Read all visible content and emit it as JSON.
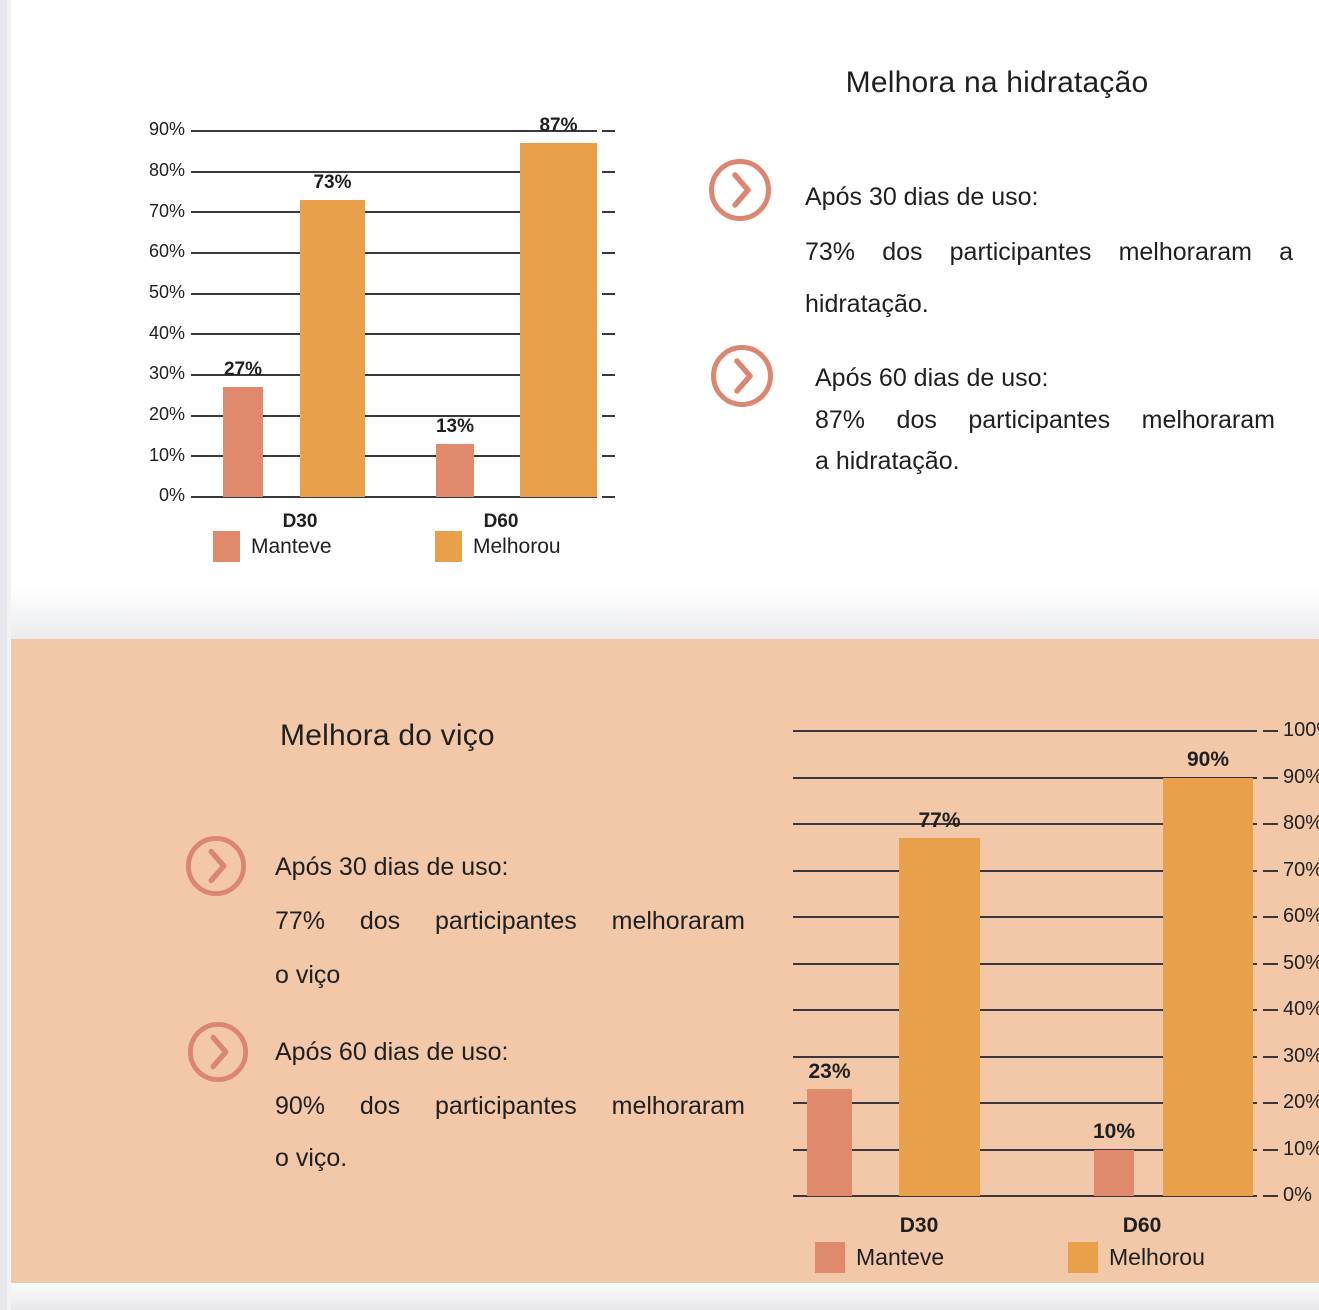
{
  "colors": {
    "manteve": "#E0896D",
    "melhorou": "#E9A04B",
    "panel_background": "#F3C8A8",
    "icon_stroke": "#DC8570",
    "grid_line": "#39373B",
    "text": "#1F1F1F"
  },
  "sections": {
    "hydration": {
      "title": "Melhora na hidratação",
      "bullets": [
        {
          "heading": "Após 30 dias de uso:",
          "lines": [
            "73% dos participantes melhoraram a",
            "hidratação."
          ]
        },
        {
          "heading": "Após 60 dias de uso:",
          "lines": [
            "87% dos participantes melhoraram",
            "a hidratação."
          ]
        }
      ]
    },
    "vitality": {
      "title": "Melhora do viço",
      "bullets": [
        {
          "heading": "Após 30 dias de uso:",
          "lines": [
            "77% dos participantes melhoraram",
            "o viço"
          ]
        },
        {
          "heading": "Após 60 dias de uso:",
          "lines": [
            "90% dos participantes melhoraram",
            "o viço."
          ]
        }
      ]
    }
  },
  "chart_data": [
    {
      "type": "bar",
      "title": "Melhora na hidratação",
      "categories": [
        "D30",
        "D60"
      ],
      "series": [
        {
          "name": "Manteve",
          "values": [
            27,
            13
          ],
          "color": "#E0896D"
        },
        {
          "name": "Melhorou",
          "values": [
            73,
            87
          ],
          "color": "#E9A04B"
        }
      ],
      "ylim": [
        0,
        90
      ],
      "ytick_step": 10,
      "y_axis_side": "left",
      "value_label_format": "percent",
      "grid": true,
      "legend_position": "bottom"
    },
    {
      "type": "bar",
      "title": "Melhora do viço",
      "categories": [
        "D30",
        "D60"
      ],
      "series": [
        {
          "name": "Manteve",
          "values": [
            23,
            10
          ],
          "color": "#E0896D"
        },
        {
          "name": "Melhorou",
          "values": [
            77,
            90
          ],
          "color": "#E9A04B"
        }
      ],
      "ylim": [
        0,
        100
      ],
      "ytick_step": 10,
      "y_axis_side": "right",
      "value_label_format": "percent",
      "grid": true,
      "legend_position": "bottom"
    }
  ]
}
